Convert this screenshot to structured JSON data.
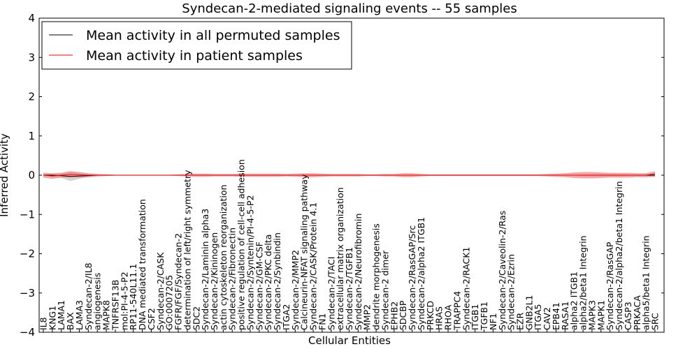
{
  "chart_data": {
    "type": "line",
    "title": "Syndecan-2-mediated signaling events -- 55 samples",
    "xlabel": "Cellular Entities",
    "ylabel": "Inferred Activity",
    "ylim": [
      -4,
      4
    ],
    "yticks": [
      -4,
      -3,
      -2,
      -1,
      0,
      1,
      2,
      3,
      4
    ],
    "categories": [
      "IL8",
      "KNG1",
      "LAMA1",
      "BAX",
      "LAMA3",
      "Syndecan-2/IL8",
      "angiogenesis",
      "MAPK8",
      "TNFRSF13B",
      "mol:PI-4-5-P2",
      "RP11-540L11.1",
      "DNA mediated transformation",
      "CSF2",
      "Syndecan-2/CASK",
      "GO:0007205",
      "FGFR/FGF/Syndecan-2",
      "determination of left/right symmetry",
      "SDC2",
      "Syndecan-2/Laminin alpha3",
      "Syndecan-2/Kininogen",
      "actin cytoskeleton reorganization",
      "Syndecan-2/Fibronectin",
      "positive regulation of cell-cell adhesion",
      "Syndecan-2/Syntenin/PI-4-5-P2",
      "Syndecan-2/GM-CSF",
      "Syndecan-2/PKC delta",
      "Syndecan-2/Synbindin",
      "ITGA2",
      "Syndecan-2/MMP2",
      "Calcineurin-NFAT signaling pathway",
      "Syndecan-2/CASK/Protein 4.1",
      "FN1",
      "Syndecan-2/TACI",
      "extracellular matrix organization",
      "Syndecan-2/TGFB1",
      "Syndecan-2/Neurofibromin",
      "MMP2",
      "dendrite morphogenesis",
      "Syndecan-2 dimer",
      "EPHB2",
      "SDCBP",
      "Syndecan-2/RasGAP/Src",
      "Syndecan-2/alpha2 ITGB1",
      "PRKCD",
      "HRAS",
      "RHOA",
      "TRAPPC4",
      "Syndecan-2/RACK1",
      "ITGB1",
      "TGFB1",
      "NF1",
      "Syndecan-2/Caveolin-2/Ras",
      "Syndecan-2/Ezrin",
      "EZR",
      "GNB2L1",
      "ITGA5",
      "CAV2",
      "EPB41",
      "RASA1",
      "alpha2 ITGB1",
      "alpha2/beta1 Integrin",
      "MAPK3",
      "MAPK1",
      "Syndecan-2/RasGAP",
      "Syndecan-2/alpha2/beta1 Integrin",
      "CASP3",
      "PRKACA",
      "alpha5/beta1 Integrin",
      "SRC"
    ],
    "series": [
      {
        "name": "Mean activity in all permuted samples",
        "color": "#000000",
        "band_color": "#b0b0b0",
        "values": [
          0.0,
          0.0,
          -0.01,
          -0.03,
          -0.02,
          -0.01,
          0,
          0,
          0,
          0,
          0,
          0,
          0,
          0,
          0,
          0,
          0,
          0,
          0,
          0,
          0,
          0,
          0,
          0,
          0,
          0,
          0,
          0,
          0,
          0,
          0,
          0,
          0,
          0,
          0,
          0,
          0,
          0,
          0,
          0,
          0,
          0,
          0,
          0,
          0,
          0,
          0,
          0,
          0,
          0,
          0,
          0,
          0,
          0,
          0,
          0,
          0,
          0,
          0,
          0,
          0,
          0,
          0,
          0,
          0,
          0,
          0,
          0,
          0
        ],
        "band": [
          0.02,
          0.03,
          0.06,
          0.12,
          0.07,
          0.04,
          0.02,
          0.02,
          0.01,
          0.01,
          0.01,
          0.01,
          0.01,
          0.01,
          0.01,
          0.01,
          0.01,
          0.01,
          0.01,
          0.01,
          0.01,
          0.01,
          0.01,
          0.01,
          0.01,
          0.01,
          0.01,
          0.01,
          0.01,
          0.01,
          0.01,
          0.01,
          0.01,
          0.01,
          0.01,
          0.01,
          0.01,
          0.01,
          0.01,
          0.01,
          0.01,
          0.01,
          0.01,
          0.01,
          0.01,
          0.01,
          0.01,
          0.01,
          0.01,
          0.01,
          0.01,
          0.01,
          0.01,
          0.01,
          0.01,
          0.01,
          0.01,
          0.01,
          0.01,
          0.01,
          0.02,
          0.03,
          0.04,
          0.03,
          0.03,
          0.02,
          0.02,
          0.03,
          0.04
        ]
      },
      {
        "name": "Mean activity in patient samples",
        "color": "#ff0000",
        "band_color": "#f08080",
        "values": [
          0.0,
          -0.02,
          0.0,
          0.02,
          0.01,
          0.0,
          0,
          0,
          0,
          0,
          0,
          0,
          0,
          0,
          0,
          0,
          0,
          0,
          0,
          0,
          0,
          0,
          0,
          0,
          0,
          0,
          0,
          0,
          0,
          0,
          0,
          0,
          0,
          0,
          0,
          0,
          0,
          0,
          0,
          0,
          0,
          0,
          0,
          0,
          0,
          0,
          0,
          0,
          0,
          0,
          0,
          0,
          0,
          0,
          0,
          0,
          0,
          0,
          0,
          0,
          0,
          0,
          0,
          0,
          0,
          0,
          0,
          0,
          0.03
        ],
        "band": [
          0.06,
          0.07,
          0.06,
          0.08,
          0.07,
          0.05,
          0.03,
          0.02,
          0.01,
          0.01,
          0.01,
          0.01,
          0.01,
          0.01,
          0.01,
          0.02,
          0.03,
          0.04,
          0.04,
          0.03,
          0.03,
          0.03,
          0.04,
          0.04,
          0.04,
          0.04,
          0.04,
          0.03,
          0.04,
          0.05,
          0.05,
          0.04,
          0.03,
          0.03,
          0.03,
          0.03,
          0.02,
          0.02,
          0.03,
          0.03,
          0.05,
          0.05,
          0.03,
          0.02,
          0.02,
          0.02,
          0.02,
          0.02,
          0.02,
          0.02,
          0.02,
          0.02,
          0.02,
          0.02,
          0.02,
          0.02,
          0.03,
          0.04,
          0.05,
          0.07,
          0.08,
          0.08,
          0.07,
          0.06,
          0.06,
          0.06,
          0.05,
          0.05,
          0.07
        ]
      }
    ],
    "legend_position": "upper-left"
  }
}
